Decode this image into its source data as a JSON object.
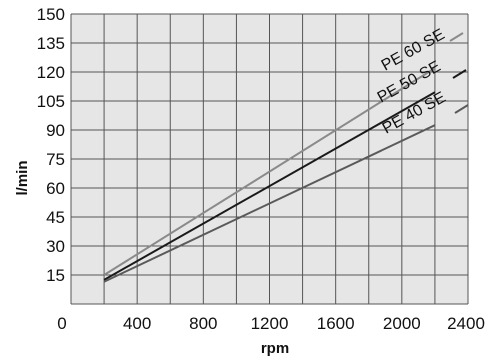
{
  "chart_data": {
    "type": "line",
    "title": "",
    "xlabel": "rpm",
    "ylabel": "l/min",
    "xlim": [
      0,
      2400
    ],
    "ylim": [
      0,
      150
    ],
    "x_ticks": [
      0,
      400,
      800,
      1200,
      1600,
      2000,
      2400
    ],
    "y_ticks": [
      15,
      30,
      45,
      60,
      75,
      90,
      105,
      120,
      135,
      150
    ],
    "x_tick_labels": [
      "0",
      "400",
      "800",
      "1200",
      "1600",
      "2000",
      "2400"
    ],
    "y_tick_labels": [
      "15",
      "30",
      "45",
      "60",
      "75",
      "90",
      "105",
      "120",
      "135",
      "150"
    ],
    "grid": true,
    "grid_step_x": 200,
    "grid_step_y": 15,
    "background_color": "#e6e6e6",
    "grid_color": "#555555",
    "series": [
      {
        "name": "PE 60 SE",
        "color": "#8a8a8a",
        "x": [
          200,
          2200
        ],
        "y": [
          15,
          122
        ]
      },
      {
        "name": "PE 50 SE",
        "color": "#1a1a1a",
        "x": [
          200,
          2200
        ],
        "y": [
          12.5,
          109.5
        ]
      },
      {
        "name": "PE 40 SE",
        "color": "#5a5a5a",
        "x": [
          200,
          2200
        ],
        "y": [
          11.5,
          92.5
        ]
      }
    ]
  }
}
